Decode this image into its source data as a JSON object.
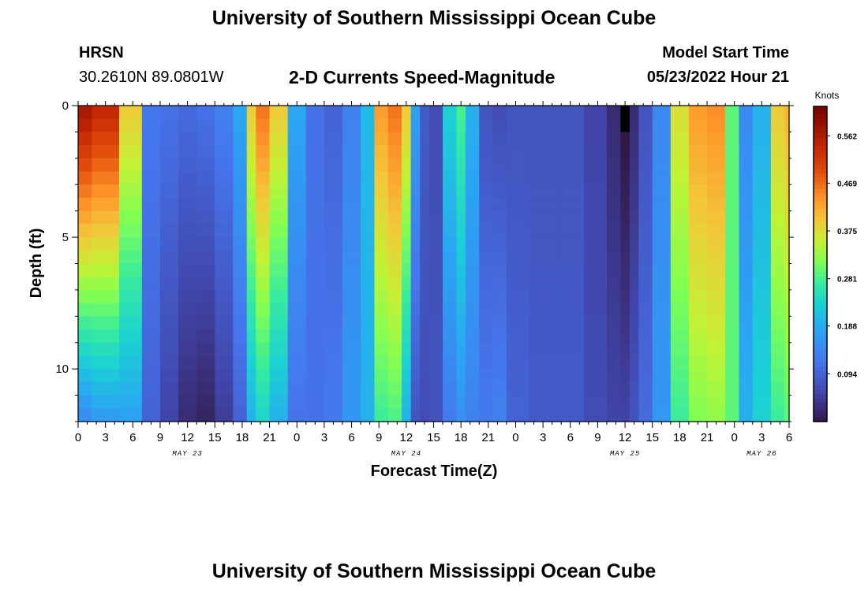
{
  "header": {
    "title": "University of Southern Mississippi Ocean Cube",
    "station_id": "HRSN",
    "coordinates": "30.2610N  89.0801W",
    "subtitle": "2-D Currents Speed-Magnitude",
    "model_start_label": "Model Start Time",
    "model_start_value": "05/23/2022 Hour 21"
  },
  "footer": {
    "title": "University of Southern Mississippi Ocean Cube"
  },
  "chart_data": {
    "type": "heatmap",
    "title": "2-D Currents Speed-Magnitude",
    "xlabel": "Forecast Time(Z)",
    "ylabel": "Depth (ft)",
    "x_unit": "hours since 2022-05-23 00Z",
    "xlim": [
      0,
      78
    ],
    "ylim": [
      0,
      12
    ],
    "y_inverted": true,
    "x_ticks": [
      {
        "v": 0,
        "label": "0"
      },
      {
        "v": 3,
        "label": "3"
      },
      {
        "v": 6,
        "label": "6"
      },
      {
        "v": 9,
        "label": "9"
      },
      {
        "v": 12,
        "label": "12"
      },
      {
        "v": 15,
        "label": "15"
      },
      {
        "v": 18,
        "label": "18"
      },
      {
        "v": 21,
        "label": "21"
      },
      {
        "v": 24,
        "label": "0"
      },
      {
        "v": 27,
        "label": "3"
      },
      {
        "v": 30,
        "label": "6"
      },
      {
        "v": 33,
        "label": "9"
      },
      {
        "v": 36,
        "label": "12"
      },
      {
        "v": 39,
        "label": "15"
      },
      {
        "v": 42,
        "label": "18"
      },
      {
        "v": 45,
        "label": "21"
      },
      {
        "v": 48,
        "label": "0"
      },
      {
        "v": 51,
        "label": "3"
      },
      {
        "v": 54,
        "label": "6"
      },
      {
        "v": 57,
        "label": "9"
      },
      {
        "v": 60,
        "label": "12"
      },
      {
        "v": 63,
        "label": "15"
      },
      {
        "v": 66,
        "label": "18"
      },
      {
        "v": 69,
        "label": "21"
      },
      {
        "v": 72,
        "label": "0"
      },
      {
        "v": 75,
        "label": "3"
      },
      {
        "v": 78,
        "label": "6"
      }
    ],
    "date_labels": [
      {
        "v": 12,
        "label": "MAY 23"
      },
      {
        "v": 36,
        "label": "MAY 24"
      },
      {
        "v": 60,
        "label": "MAY 25"
      },
      {
        "v": 75,
        "label": "MAY 26"
      }
    ],
    "y_ticks": [
      {
        "v": 0,
        "label": "0"
      },
      {
        "v": 5,
        "label": "5"
      },
      {
        "v": 10,
        "label": "10"
      }
    ],
    "colorbar": {
      "label": "Knots",
      "min": 0,
      "max": 0.62,
      "ticks": [
        0.094,
        0.188,
        0.281,
        0.375,
        0.469,
        0.562
      ],
      "tick_labels": [
        "0.094",
        "0.188",
        "0.281",
        "0.375",
        "0.469",
        "0.562"
      ]
    },
    "depths": [
      0,
      0.5,
      1,
      1.5,
      2,
      2.5,
      3,
      3.5,
      4,
      4.5,
      5,
      5.5,
      6,
      6.5,
      7,
      7.5,
      8,
      8.5,
      9,
      9.5,
      10,
      10.5,
      11,
      11.5,
      12
    ],
    "times": [
      0,
      3,
      6,
      8,
      10,
      12,
      14,
      16,
      18,
      19,
      20,
      22,
      24,
      26,
      28,
      30,
      32,
      33,
      35,
      36,
      37,
      38,
      39,
      41,
      42,
      43,
      45,
      46,
      48,
      51,
      54,
      57,
      59,
      60,
      61,
      62,
      64,
      66,
      68,
      70,
      72,
      73,
      75,
      77,
      78
    ],
    "surface_speed": [
      0.58,
      0.55,
      0.4,
      0.13,
      0.12,
      0.11,
      0.12,
      0.14,
      0.19,
      0.4,
      0.47,
      0.4,
      0.19,
      0.12,
      0.1,
      0.14,
      0.21,
      0.44,
      0.47,
      0.4,
      0.18,
      0.09,
      0.07,
      0.24,
      0.29,
      0.2,
      0.08,
      0.07,
      0.08,
      0.08,
      0.08,
      0.06,
      0.03,
      0.0,
      0.03,
      0.08,
      0.15,
      0.38,
      0.44,
      0.45,
      0.3,
      0.15,
      0.2,
      0.4,
      0.42
    ],
    "bottom_speed": [
      0.15,
      0.17,
      0.18,
      0.1,
      0.06,
      0.03,
      0.02,
      0.05,
      0.1,
      0.2,
      0.24,
      0.2,
      0.12,
      0.12,
      0.13,
      0.17,
      0.2,
      0.28,
      0.29,
      0.2,
      0.08,
      0.07,
      0.08,
      0.13,
      0.16,
      0.14,
      0.13,
      0.14,
      0.1,
      0.09,
      0.09,
      0.07,
      0.06,
      0.06,
      0.08,
      0.11,
      0.17,
      0.28,
      0.32,
      0.33,
      0.3,
      0.2,
      0.24,
      0.28,
      0.3
    ]
  }
}
